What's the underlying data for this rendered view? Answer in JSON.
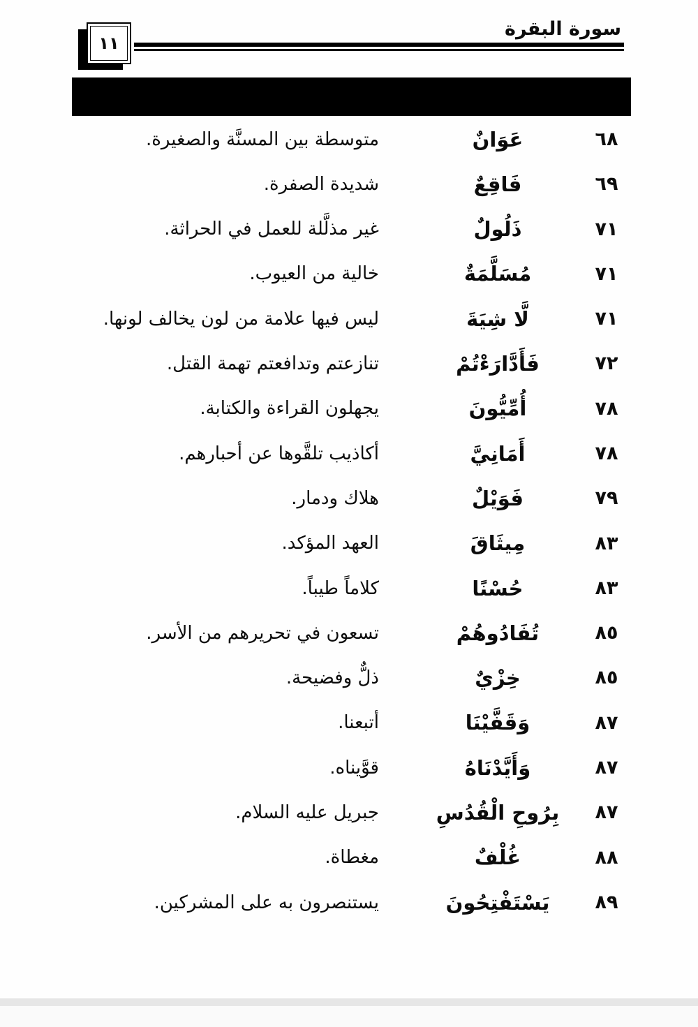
{
  "header": {
    "surah_title": "سورة البقرة",
    "page_number": "١١"
  },
  "glossary": {
    "rows": [
      {
        "verse": "٦٨",
        "word": "عَوَانٌ",
        "meaning": "متوسطة بين المسنَّة والصغيرة."
      },
      {
        "verse": "٦٩",
        "word": "فَاقِعٌ",
        "meaning": "شديدة الصفرة."
      },
      {
        "verse": "٧١",
        "word": "ذَلُولٌ",
        "meaning": "غير مذلَّلة للعمل في الحراثة."
      },
      {
        "verse": "٧١",
        "word": "مُسَلَّمَةٌ",
        "meaning": "خالية من العيوب."
      },
      {
        "verse": "٧١",
        "word": "لَّا شِيَةَ",
        "meaning": "ليس فيها علامة من لون يخالف لونها."
      },
      {
        "verse": "٧٢",
        "word": "فَأَدَّارَءْتُمْ",
        "meaning": "تنازعتم وتدافعتم تهمة القتل."
      },
      {
        "verse": "٧٨",
        "word": "أُمِّيُّونَ",
        "meaning": "يجهلون القراءة والكتابة."
      },
      {
        "verse": "٧٨",
        "word": "أَمَانِيَّ",
        "meaning": "أكاذيب تلقَّوها عن أحبارهم."
      },
      {
        "verse": "٧٩",
        "word": "فَوَيْلٌ",
        "meaning": "هلاك ودمار."
      },
      {
        "verse": "٨٣",
        "word": "مِيثَاقَ",
        "meaning": "العهد المؤكد."
      },
      {
        "verse": "٨٣",
        "word": "حُسْنًا",
        "meaning": "كلاماً طيباً."
      },
      {
        "verse": "٨٥",
        "word": "تُفَادُوهُمْ",
        "meaning": "تسعون في تحريرهم من الأسر."
      },
      {
        "verse": "٨٥",
        "word": "خِزْيٌ",
        "meaning": "ذلٌّ وفضيحة."
      },
      {
        "verse": "٨٧",
        "word": "وَقَفَّيْنَا",
        "meaning": "أتبعنا."
      },
      {
        "verse": "٨٧",
        "word": "وَأَيَّدْنَاهُ",
        "meaning": "قوَّيناه."
      },
      {
        "verse": "٨٧",
        "word": "بِرُوحِ الْقُدُسِ",
        "meaning": "جبريل عليه السلام."
      },
      {
        "verse": "٨٨",
        "word": "غُلْفٌ",
        "meaning": "مغطاة."
      },
      {
        "verse": "٨٩",
        "word": "يَسْتَفْتِحُونَ",
        "meaning": "يستنصرون به على المشركين."
      }
    ]
  }
}
